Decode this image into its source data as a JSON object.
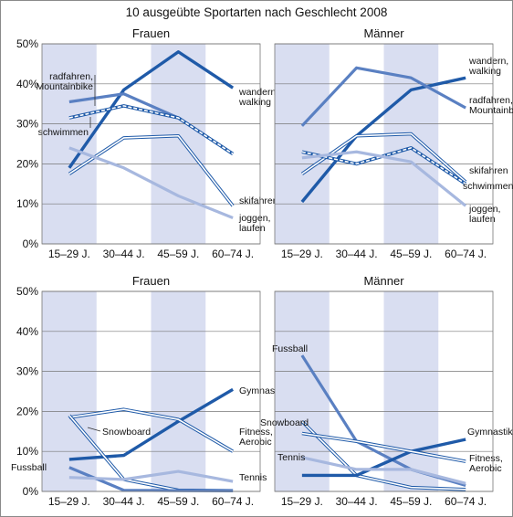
{
  "title": "10 ausgeübte Sportarten nach Geschlecht 2008",
  "colors": {
    "band": "#d9def1",
    "dark": "#1f5aa8",
    "mid": "#5a80c2",
    "light": "#a7b8df",
    "grid": "#777777"
  },
  "chart_data": [
    {
      "type": "line",
      "title": "Frauen",
      "categories": [
        "15–29 J.",
        "30–44 J.",
        "45–59 J.",
        "60–74 J."
      ],
      "ylim": [
        0,
        50
      ],
      "yticks": [
        "0%",
        "10%",
        "20%",
        "30%",
        "40%",
        "50%"
      ],
      "series": [
        {
          "name": "wandern, walking",
          "label_lines": [
            "wandern,",
            "walking"
          ],
          "values": [
            19,
            38.5,
            48,
            39
          ],
          "style": "dark"
        },
        {
          "name": "radfahren, Mountainbike",
          "label_lines": [
            "radfahren,",
            "Mountainbike"
          ],
          "values": [
            35.5,
            37.5,
            31.5,
            22.5
          ],
          "style": "mid"
        },
        {
          "name": "schwimmen",
          "label_lines": [
            "schwimmen"
          ],
          "values": [
            31.5,
            34.5,
            31.5,
            22.5
          ],
          "style": "hollow-dash"
        },
        {
          "name": "skifahren",
          "label_lines": [
            "skifahren"
          ],
          "values": [
            17.5,
            26.5,
            27,
            9.5
          ],
          "style": "hollow"
        },
        {
          "name": "joggen, laufen",
          "label_lines": [
            "joggen,",
            "laufen"
          ],
          "values": [
            24,
            19,
            12,
            6.5
          ],
          "style": "light"
        }
      ]
    },
    {
      "type": "line",
      "title": "Männer",
      "categories": [
        "15–29 J.",
        "30–44 J.",
        "45–59 J.",
        "60–74 J."
      ],
      "ylim": [
        0,
        50
      ],
      "yticks": [
        "0%",
        "10%",
        "20%",
        "30%",
        "40%",
        "50%"
      ],
      "series": [
        {
          "name": "wandern, walking",
          "label_lines": [
            "wandern,",
            "walking"
          ],
          "values": [
            10.5,
            27,
            38.5,
            41.5
          ],
          "style": "dark"
        },
        {
          "name": "radfahren, Mountainbike",
          "label_lines": [
            "radfahren,",
            "Mountainbike"
          ],
          "values": [
            29.5,
            44,
            41.5,
            34
          ],
          "style": "mid"
        },
        {
          "name": "skifahren",
          "label_lines": [
            "skifahren"
          ],
          "values": [
            17.5,
            27,
            27.5,
            15.5
          ],
          "style": "hollow"
        },
        {
          "name": "schwimmen",
          "label_lines": [
            "schwimmen"
          ],
          "values": [
            23,
            20,
            24,
            15
          ],
          "style": "hollow-dash"
        },
        {
          "name": "joggen, laufen",
          "label_lines": [
            "joggen,",
            "laufen"
          ],
          "values": [
            21.5,
            23,
            20.5,
            9.5
          ],
          "style": "light"
        }
      ]
    },
    {
      "type": "line",
      "title": "Frauen",
      "categories": [
        "15–29 J.",
        "30–44 J.",
        "45–59 J.",
        "60–74 J."
      ],
      "ylim": [
        0,
        50
      ],
      "yticks": [
        "0%",
        "10%",
        "20%",
        "30%",
        "40%",
        "50%"
      ],
      "series": [
        {
          "name": "Gymnastik",
          "label_lines": [
            "Gymnastik"
          ],
          "values": [
            8,
            9,
            17.5,
            25.5
          ],
          "style": "dark"
        },
        {
          "name": "Fitness, Aerobic",
          "label_lines": [
            "Fitness,",
            "Aerobic"
          ],
          "values": [
            18.5,
            20.5,
            18,
            10
          ],
          "style": "hollow"
        },
        {
          "name": "Snowboard",
          "label_lines": [
            "Snowboard"
          ],
          "values": [
            19,
            3,
            0.3,
            0.2
          ],
          "style": "hollow"
        },
        {
          "name": "Fussball",
          "label_lines": [
            "Fussball"
          ],
          "values": [
            6,
            0.3,
            0.2,
            0.2
          ],
          "style": "mid"
        },
        {
          "name": "Tennis",
          "label_lines": [
            "Tennis"
          ],
          "values": [
            3.5,
            3,
            5,
            2.5
          ],
          "style": "light"
        }
      ]
    },
    {
      "type": "line",
      "title": "Männer",
      "categories": [
        "15–29 J.",
        "30–44 J.",
        "45–59 J.",
        "60–74 J."
      ],
      "ylim": [
        0,
        50
      ],
      "yticks": [
        "0%",
        "10%",
        "20%",
        "30%",
        "40%",
        "50%"
      ],
      "series": [
        {
          "name": "Fussball",
          "label_lines": [
            "Fussball"
          ],
          "values": [
            34,
            12.5,
            5.5,
            1.5
          ],
          "style": "mid"
        },
        {
          "name": "Snowboard",
          "label_lines": [
            "Snowboard"
          ],
          "values": [
            17.5,
            4,
            1,
            0.5
          ],
          "style": "hollow"
        },
        {
          "name": "Gymnastik",
          "label_lines": [
            "Gymnastik"
          ],
          "values": [
            4,
            4,
            10,
            13
          ],
          "style": "dark"
        },
        {
          "name": "Fitness, Aerobic",
          "label_lines": [
            "Fitness,",
            "Aerobic"
          ],
          "values": [
            14.5,
            12.5,
            10,
            7.5
          ],
          "style": "hollow"
        },
        {
          "name": "Tennis",
          "label_lines": [
            "Tennis"
          ],
          "values": [
            8.5,
            5.5,
            5.5,
            2
          ],
          "style": "light"
        }
      ]
    }
  ]
}
